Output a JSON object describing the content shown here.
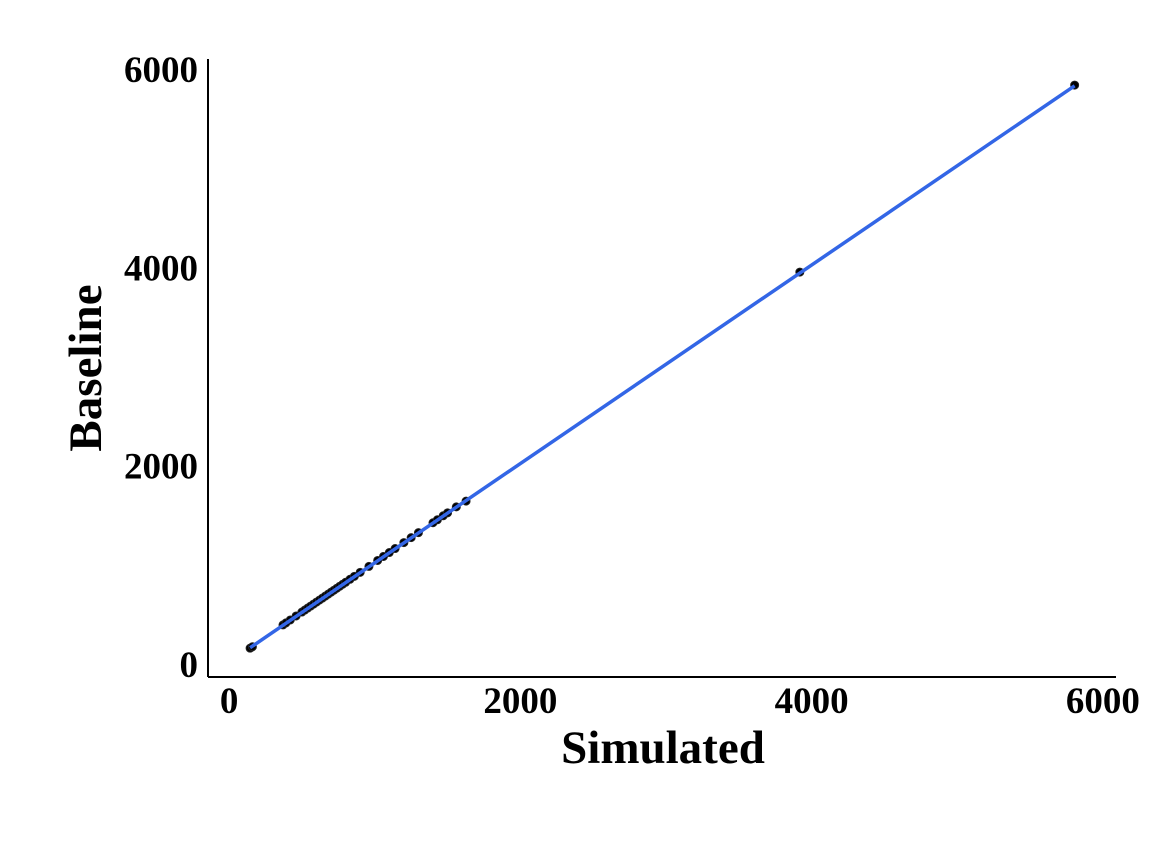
{
  "chart_data": {
    "type": "scatter",
    "x_label": "Simulated",
    "y_label": "Baseline",
    "xlim": [
      -145,
      6090
    ],
    "ylim": [
      -130,
      6100
    ],
    "xticks": [
      0,
      2000,
      4000,
      6000
    ],
    "yticks": [
      0,
      2000,
      4000,
      6000
    ],
    "grid": false,
    "series": [
      {
        "type": "scatter",
        "color": "#000000",
        "x": [
          144,
          160,
          370,
          390,
          420,
          460,
          500,
          520,
          540,
          560,
          580,
          600,
          620,
          640,
          660,
          680,
          700,
          720,
          740,
          760,
          780,
          800,
          830,
          860,
          900,
          960,
          1020,
          1060,
          1100,
          1140,
          1200,
          1250,
          1300,
          1400,
          1430,
          1470,
          1500,
          1560,
          1627,
          3919,
          5806
        ],
        "values": [
          161,
          175,
          395,
          415,
          445,
          485,
          525,
          545,
          565,
          585,
          605,
          625,
          645,
          665,
          685,
          705,
          725,
          745,
          765,
          785,
          805,
          825,
          855,
          885,
          925,
          985,
          1045,
          1085,
          1125,
          1165,
          1225,
          1275,
          1325,
          1425,
          1455,
          1495,
          1525,
          1585,
          1643,
          3952,
          5837
        ]
      },
      {
        "type": "line",
        "color": "#3366e6",
        "x": [
          144,
          5806
        ],
        "values": [
          165,
          5830
        ]
      }
    ]
  }
}
